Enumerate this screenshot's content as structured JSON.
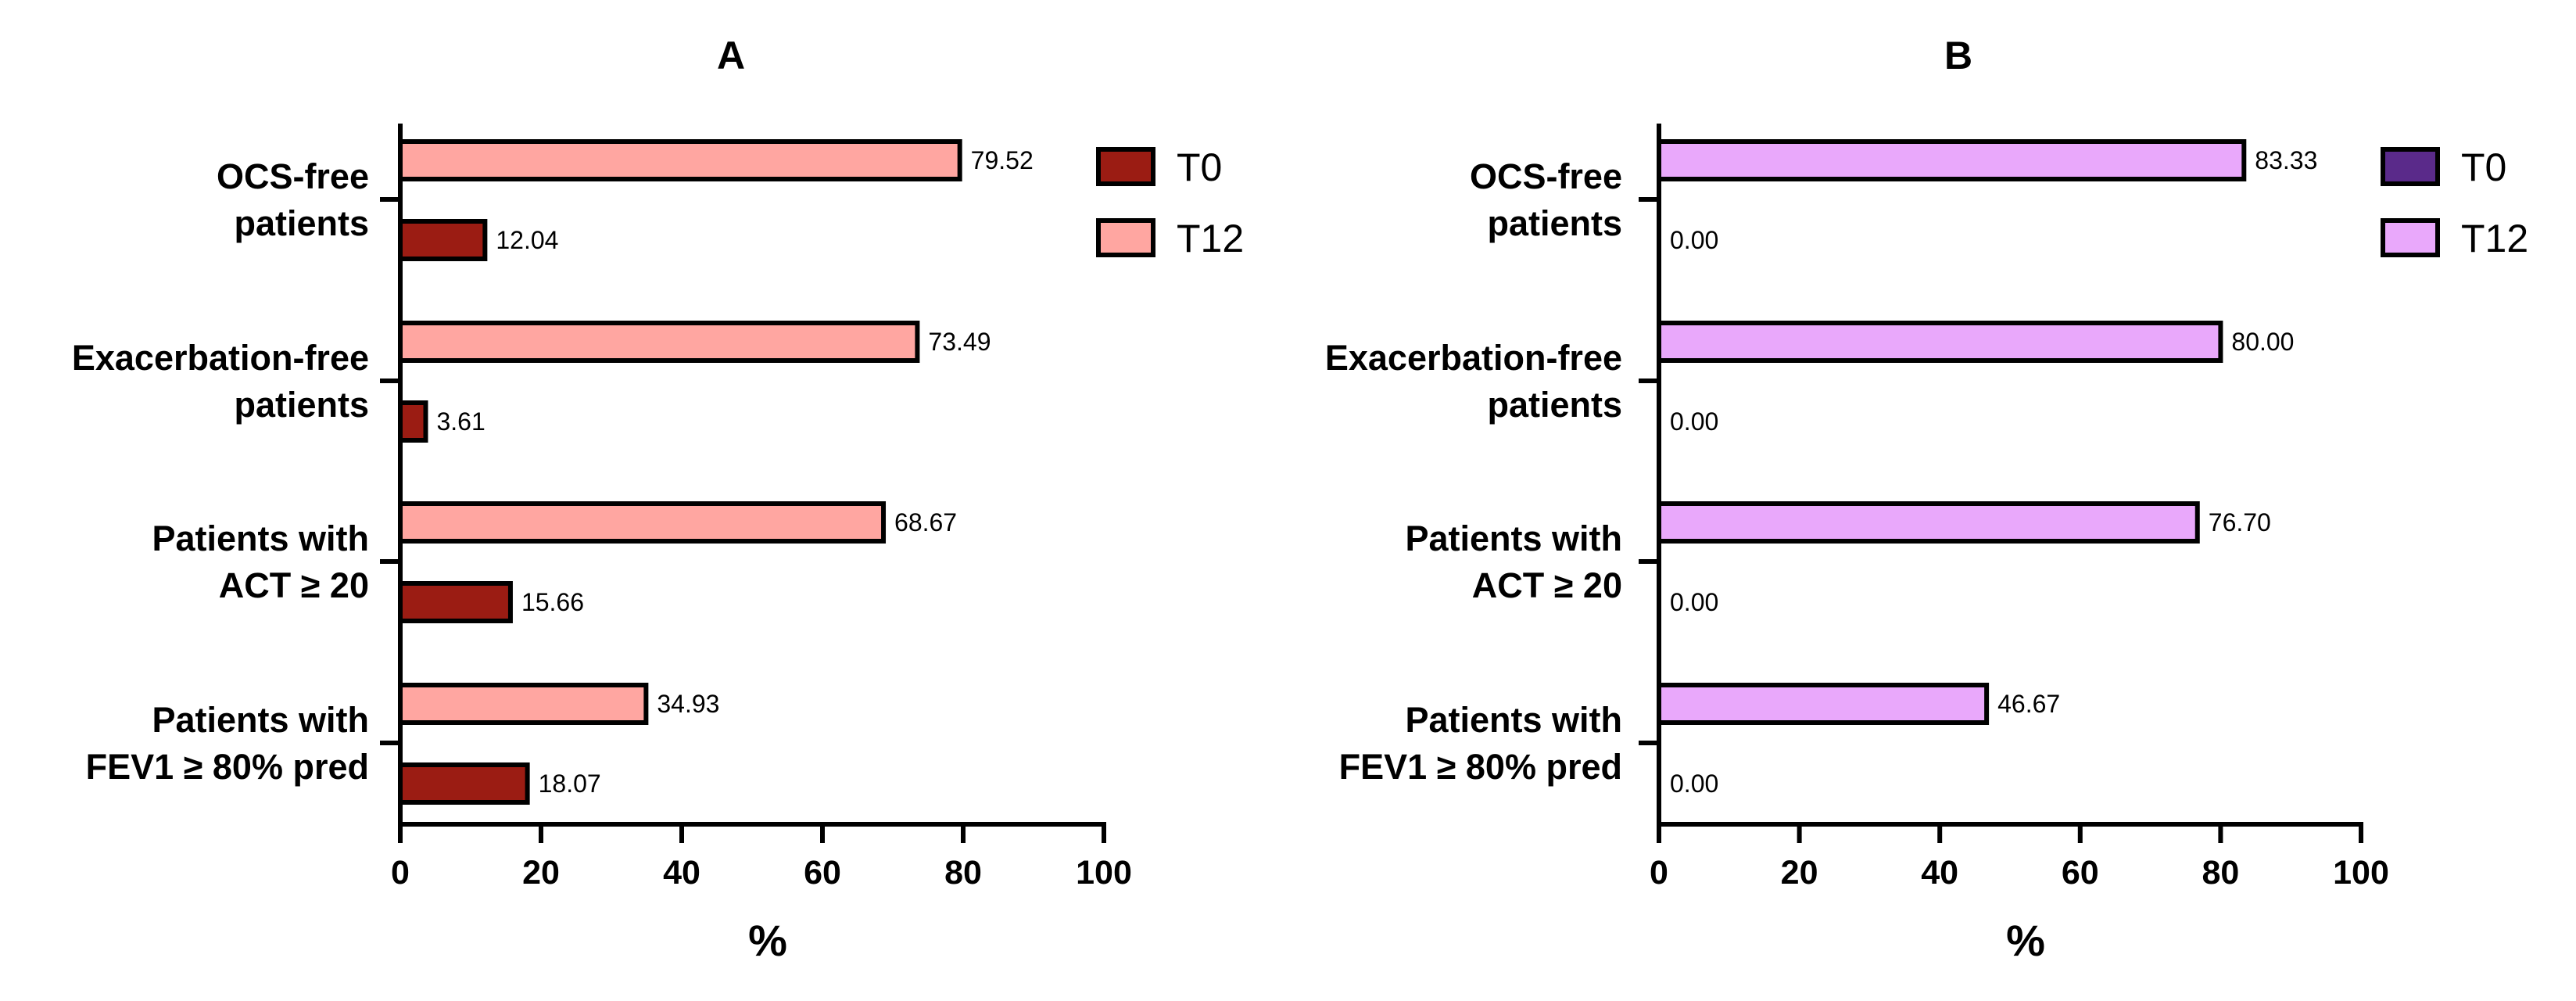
{
  "chart_data": [
    {
      "type": "bar",
      "orientation": "horizontal",
      "panel": "A",
      "title": "A",
      "xlabel": "%",
      "ylabel": "",
      "xlim": [
        0,
        100
      ],
      "xticks": [
        "0",
        "20",
        "40",
        "60",
        "80",
        "100"
      ],
      "categories": [
        [
          "OCS-free",
          "patients"
        ],
        [
          "Exacerbation-free",
          "patients"
        ],
        [
          "Patients with",
          "ACT ≥ 20"
        ],
        [
          "Patients with",
          "FEV1 ≥ 80% pred"
        ]
      ],
      "series": [
        {
          "name": "T0",
          "color": "#9b1c13",
          "values": [
            12.04,
            3.61,
            15.66,
            18.07
          ],
          "labels": [
            "12.04",
            "3.61",
            "15.66",
            "18.07"
          ]
        },
        {
          "name": "T12",
          "color": "#ffa6a1",
          "values": [
            79.52,
            73.49,
            68.67,
            34.93
          ],
          "labels": [
            "79.52",
            "73.49",
            "68.67",
            "34.93"
          ]
        }
      ],
      "legend": [
        {
          "name": "T0",
          "color": "#9b1c13"
        },
        {
          "name": "T12",
          "color": "#ffa6a1"
        }
      ],
      "legend_position": "top-right"
    },
    {
      "type": "bar",
      "orientation": "horizontal",
      "panel": "B",
      "title": "B",
      "xlabel": "%",
      "ylabel": "",
      "xlim": [
        0,
        100
      ],
      "xticks": [
        "0",
        "20",
        "40",
        "60",
        "80",
        "100"
      ],
      "categories": [
        [
          "OCS-free",
          "patients"
        ],
        [
          "Exacerbation-free",
          "patients"
        ],
        [
          "Patients with",
          "ACT ≥ 20"
        ],
        [
          "Patients with",
          "FEV1 ≥ 80% pred"
        ]
      ],
      "series": [
        {
          "name": "T0",
          "color": "#5a2a8a",
          "values": [
            0.0,
            0.0,
            0.0,
            0.0
          ],
          "labels": [
            "0.00",
            "0.00",
            "0.00",
            "0.00"
          ]
        },
        {
          "name": "T12",
          "color": "#e9a8fb",
          "values": [
            83.33,
            80.0,
            76.7,
            46.67
          ],
          "labels": [
            "83.33",
            "80.00",
            "76.70",
            "46.67"
          ]
        }
      ],
      "legend": [
        {
          "name": "T0",
          "color": "#5a2a8a"
        },
        {
          "name": "T12",
          "color": "#e9a8fb"
        }
      ],
      "legend_position": "top-right"
    }
  ]
}
